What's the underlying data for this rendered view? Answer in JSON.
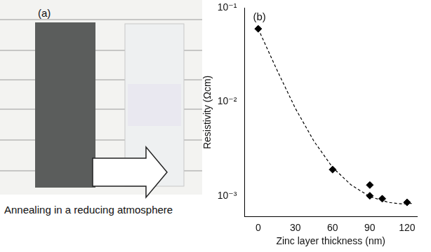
{
  "photo_panel": {
    "label": "(a)",
    "caption": "Annealing in a reducing atmosphere"
  },
  "chart_data": {
    "type": "scatter",
    "panel_label": "(b)",
    "x_label": "Zinc layer thickness (nm)",
    "y_label": "Resistivity (Ωcm)",
    "series": [
      {
        "type": "scatter",
        "marker": "diamond",
        "color": "#000000",
        "x": [
          0,
          60,
          90,
          90,
          100,
          120
        ],
        "values": [
          0.06,
          0.0019,
          0.0013,
          0.001,
          0.00093,
          0.00085
        ]
      },
      {
        "type": "line",
        "line_style": "dashed",
        "color": "#000000",
        "x": [
          0,
          15,
          30,
          45,
          60,
          75,
          90,
          105,
          115,
          125
        ],
        "values": [
          0.06,
          0.022,
          0.0085,
          0.0038,
          0.002,
          0.0013,
          0.00098,
          0.00085,
          0.00082,
          0.00083
        ]
      }
    ],
    "xlim": [
      -11,
      128
    ],
    "xticks": [
      0,
      30,
      60,
      90,
      120
    ],
    "ylim": [
      0.0006,
      0.1
    ],
    "yticks": [
      {
        "value": 0.001,
        "label": "10⁻³"
      },
      {
        "value": 0.01,
        "label": "10⁻²"
      },
      {
        "value": 0.1,
        "label": "10⁻¹"
      }
    ],
    "log": "y",
    "grid": false
  }
}
